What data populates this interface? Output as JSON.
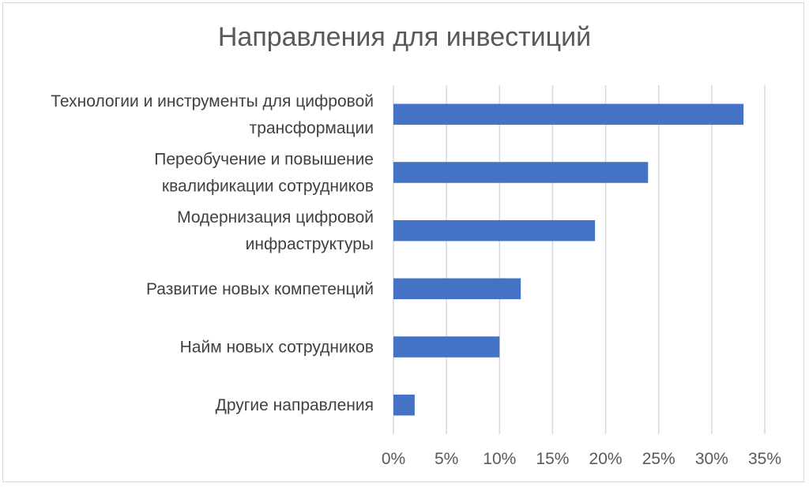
{
  "chart_data": {
    "type": "bar",
    "orientation": "horizontal",
    "title": "Направления для инвестиций",
    "xlabel": "",
    "ylabel": "",
    "categories": [
      [
        "Технологии и инструменты для цифровой",
        "трансформации"
      ],
      [
        "Переобучение и повышение",
        "квалификации сотрудников"
      ],
      [
        "Модернизация цифровой",
        "инфраструктуры"
      ],
      [
        "Развитие новых компетенций"
      ],
      [
        "Найм новых сотрудников"
      ],
      [
        "Другие направления"
      ]
    ],
    "values": [
      33,
      24,
      19,
      12,
      10,
      2
    ],
    "xlim": [
      0,
      35
    ],
    "xticks": [
      "0%",
      "5%",
      "10%",
      "15%",
      "20%",
      "25%",
      "30%",
      "35%"
    ],
    "grid": true,
    "legend": "none",
    "colors": {
      "bar": "#4472c4",
      "grid": "#d9d9d9"
    }
  }
}
